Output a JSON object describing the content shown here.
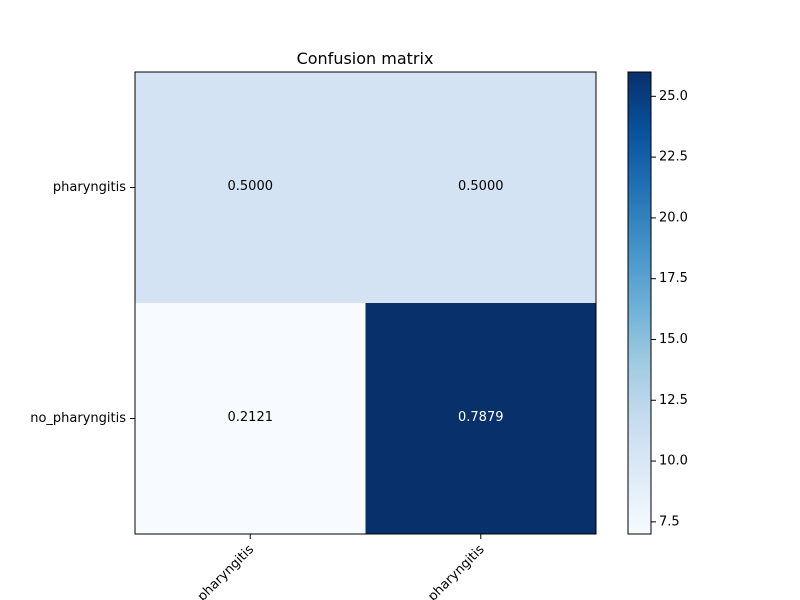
{
  "chart_data": {
    "type": "heatmap",
    "title": "Confusion matrix",
    "xlabel": "",
    "ylabel": "",
    "row_labels": [
      "pharyngitis",
      "no_pharyngitis"
    ],
    "col_labels": [
      "pharyngitis",
      "no_pharyngitis"
    ],
    "col_labels_visible": [
      "pharyngitis",
      "pharyngitis"
    ],
    "values": [
      [
        0.5,
        0.5
      ],
      [
        0.2121,
        0.7879
      ]
    ],
    "cell_labels": [
      [
        "0.5000",
        "0.5000"
      ],
      [
        "0.2121",
        "0.7879"
      ]
    ],
    "color_values": [
      [
        10.5,
        10.5
      ],
      [
        7.0,
        26.0
      ]
    ],
    "colormap": "Blues",
    "colorbar": {
      "range": [
        7.0,
        26.0
      ],
      "ticks": [
        7.5,
        10.0,
        12.5,
        15.0,
        17.5,
        20.0,
        22.5,
        25.0
      ],
      "tick_labels": [
        "7.5",
        "10.0",
        "12.5",
        "15.0",
        "17.5",
        "20.0",
        "22.5",
        "25.0"
      ]
    },
    "grid": false,
    "legend": "colorbar-right"
  }
}
